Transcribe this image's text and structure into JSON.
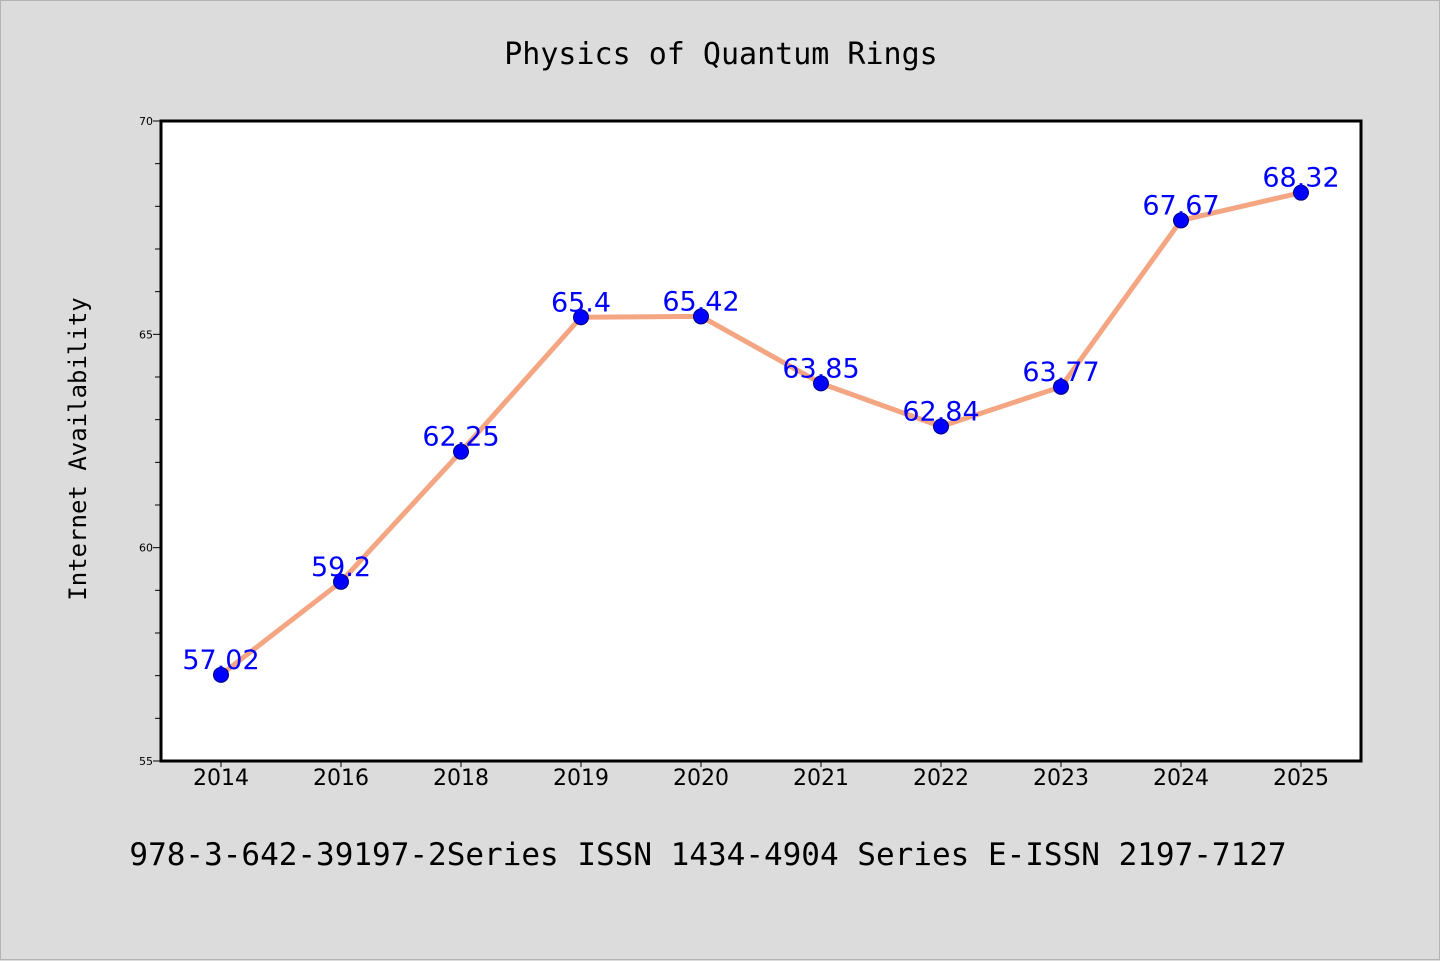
{
  "chart_data": {
    "type": "line",
    "title": "Physics of Quantum Rings",
    "xlabel": "",
    "ylabel": "Internet Availability",
    "categories": [
      "2014",
      "2016",
      "2018",
      "2019",
      "2020",
      "2021",
      "2022",
      "2023",
      "2024",
      "2025"
    ],
    "series": [
      {
        "values": [
          57.02,
          59.2,
          62.25,
          65.4,
          65.42,
          63.85,
          62.84,
          63.77,
          67.67,
          68.32
        ],
        "data_labels": [
          "57.02",
          "59.2",
          "62.25",
          "65.4",
          "65.42",
          "63.85",
          "62.84",
          "63.77",
          "67.67",
          "68.32"
        ]
      }
    ],
    "ylim": [
      55,
      70
    ],
    "yticks": [
      "55",
      "60",
      "65",
      "70"
    ],
    "y_minor_step": 1,
    "grid": false,
    "legend": "none",
    "colors": {
      "line": "#f4a582",
      "marker": "#0000ff",
      "marker_edge": "#00007a",
      "data_label": "#0000ff",
      "plot_bg": "#ffffff",
      "figure_bg": "#dcdcdc",
      "text": "#000000"
    }
  },
  "footer": {
    "caption": "978-3-642-39197-2Series ISSN 1434-4904 Series E-ISSN 2197-7127"
  }
}
